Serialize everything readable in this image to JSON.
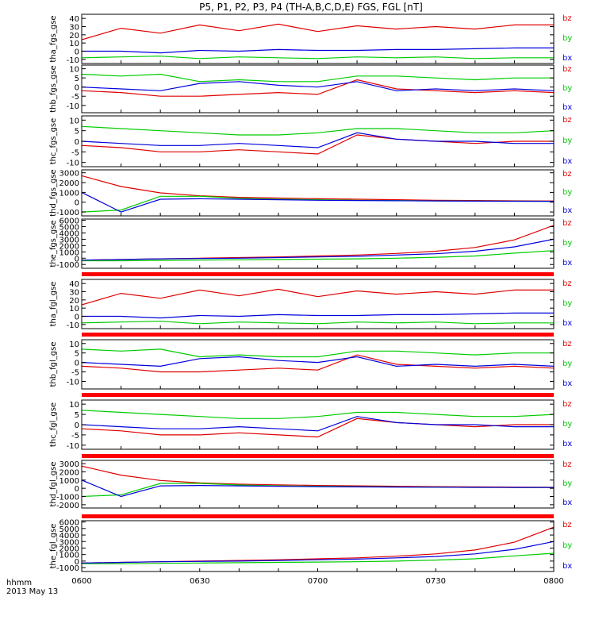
{
  "title": "P5, P1, P2, P3, P4 (TH-A,B,C,D,E) FGS, FGL [nT]",
  "footer": {
    "time_label": "hhmm",
    "date_label": "2013 May 13"
  },
  "x_ticks": [
    "0600",
    "0630",
    "0700",
    "0730",
    "0800"
  ],
  "colors": {
    "bz": "#e00000",
    "by": "#00cc00",
    "bx": "#0000dd",
    "bar": "#ff0000",
    "axis": "#000000"
  },
  "chart_data": [
    {
      "type": "line",
      "id": "tha_fgs_gse",
      "ylabel": "tha_fgs_gse",
      "yticks": [
        "40",
        "30",
        "20",
        "10",
        "0",
        "-10"
      ],
      "ylim": [
        -15,
        45
      ],
      "x": [
        "06:00",
        "06:10",
        "06:20",
        "06:30",
        "06:40",
        "06:50",
        "07:00",
        "07:10",
        "07:20",
        "07:30",
        "07:40",
        "07:50",
        "08:00"
      ],
      "series": [
        {
          "name": "bz",
          "values": [
            14,
            28,
            22,
            32,
            25,
            33,
            24,
            31,
            27,
            30,
            27,
            32,
            32
          ]
        },
        {
          "name": "by",
          "values": [
            -8,
            -7,
            -6,
            -9,
            -7,
            -8,
            -9,
            -7,
            -8,
            -7,
            -9,
            -8,
            -8
          ]
        },
        {
          "name": "bx",
          "values": [
            0,
            0,
            -2,
            1,
            0,
            2,
            1,
            1,
            2,
            2,
            3,
            4,
            4
          ]
        }
      ]
    },
    {
      "type": "line",
      "id": "thb_fgs_gse",
      "ylabel": "thb_fgs_gse",
      "yticks": [
        "10",
        "5",
        "0",
        "-5",
        "-10"
      ],
      "ylim": [
        -14,
        12
      ],
      "x": [
        "06:00",
        "06:10",
        "06:20",
        "06:30",
        "06:40",
        "06:50",
        "07:00",
        "07:10",
        "07:20",
        "07:30",
        "07:40",
        "07:50",
        "08:00"
      ],
      "series": [
        {
          "name": "bz",
          "values": [
            -2,
            -3,
            -5,
            -5,
            -4,
            -3,
            -4,
            4,
            -1,
            -2,
            -3,
            -2,
            -3
          ]
        },
        {
          "name": "by",
          "values": [
            7,
            6,
            7,
            3,
            4,
            3,
            3,
            6,
            6,
            5,
            4,
            5,
            5
          ]
        },
        {
          "name": "bx",
          "values": [
            0,
            -1,
            -2,
            2,
            3,
            1,
            0,
            3,
            -2,
            -1,
            -2,
            -1,
            -2
          ]
        }
      ]
    },
    {
      "type": "line",
      "id": "thc_fgs_gse",
      "ylabel": "thc_fgs_gse",
      "yticks": [
        "10",
        "5",
        "0",
        "-5",
        "-10"
      ],
      "ylim": [
        -12,
        12
      ],
      "x": [
        "06:00",
        "06:10",
        "06:20",
        "06:30",
        "06:40",
        "06:50",
        "07:00",
        "07:10",
        "07:20",
        "07:30",
        "07:40",
        "07:50",
        "08:00"
      ],
      "series": [
        {
          "name": "bz",
          "values": [
            -2,
            -3,
            -5,
            -5,
            -4,
            -5,
            -6,
            3,
            1,
            0,
            -1,
            0,
            0
          ]
        },
        {
          "name": "by",
          "values": [
            7,
            6,
            5,
            4,
            3,
            3,
            4,
            6,
            6,
            5,
            4,
            4,
            5
          ]
        },
        {
          "name": "bx",
          "values": [
            0,
            -1,
            -2,
            -2,
            -1,
            -2,
            -3,
            4,
            1,
            0,
            0,
            -1,
            -1
          ]
        }
      ]
    },
    {
      "type": "line",
      "id": "thd_fgs_gse",
      "ylabel": "thd_fgs_gse",
      "yticks": [
        "3000",
        "2000",
        "1000",
        "0",
        "-1000"
      ],
      "ylim": [
        -1400,
        3300
      ],
      "x": [
        "06:00",
        "06:10",
        "06:20",
        "06:30",
        "06:40",
        "06:50",
        "07:00",
        "07:10",
        "07:20",
        "07:30",
        "07:40",
        "07:50",
        "08:00"
      ],
      "series": [
        {
          "name": "bz",
          "values": [
            2700,
            1600,
            950,
            650,
            500,
            420,
            350,
            300,
            250,
            200,
            170,
            140,
            120
          ]
        },
        {
          "name": "by",
          "values": [
            -1000,
            -800,
            600,
            600,
            400,
            300,
            250,
            200,
            160,
            130,
            110,
            100,
            90
          ]
        },
        {
          "name": "bx",
          "values": [
            1000,
            -1000,
            300,
            350,
            300,
            250,
            200,
            170,
            150,
            130,
            110,
            100,
            90
          ]
        }
      ]
    },
    {
      "type": "line",
      "id": "the_fgs_gse",
      "ylabel": "the_fgs_gse",
      "yticks": [
        "6000",
        "5000",
        "4000",
        "3000",
        "2000",
        "1000",
        "0",
        "-1000"
      ],
      "ylim": [
        -1600,
        6200
      ],
      "x": [
        "06:00",
        "06:10",
        "06:20",
        "06:30",
        "06:40",
        "06:50",
        "07:00",
        "07:10",
        "07:20",
        "07:30",
        "07:40",
        "07:50",
        "08:00"
      ],
      "series": [
        {
          "name": "bz",
          "values": [
            -300,
            -200,
            -100,
            0,
            100,
            200,
            350,
            500,
            750,
            1100,
            1700,
            2900,
            5200
          ]
        },
        {
          "name": "by",
          "values": [
            -400,
            -400,
            -350,
            -300,
            -250,
            -200,
            -150,
            -100,
            0,
            150,
            350,
            800,
            1200
          ]
        },
        {
          "name": "bx",
          "values": [
            -300,
            -200,
            -100,
            -50,
            0,
            100,
            200,
            300,
            500,
            700,
            1100,
            1800,
            3000
          ]
        }
      ]
    },
    {
      "type": "line",
      "id": "tha_fgl_gse",
      "ylabel": "tha_fgl_gse",
      "yticks": [
        "40",
        "30",
        "20",
        "10",
        "0",
        "-10"
      ],
      "ylim": [
        -15,
        45
      ],
      "x": [
        "06:00",
        "06:10",
        "06:20",
        "06:30",
        "06:40",
        "06:50",
        "07:00",
        "07:10",
        "07:20",
        "07:30",
        "07:40",
        "07:50",
        "08:00"
      ],
      "series": [
        {
          "name": "bz",
          "values": [
            14,
            28,
            22,
            32,
            25,
            33,
            24,
            31,
            27,
            30,
            27,
            32,
            32
          ]
        },
        {
          "name": "by",
          "values": [
            -8,
            -7,
            -6,
            -9,
            -7,
            -8,
            -9,
            -7,
            -8,
            -7,
            -9,
            -8,
            -8
          ]
        },
        {
          "name": "bx",
          "values": [
            0,
            0,
            -2,
            1,
            0,
            2,
            1,
            1,
            2,
            2,
            3,
            4,
            4
          ]
        }
      ]
    },
    {
      "type": "line",
      "id": "thb_fgl_gse",
      "ylabel": "thb_fgl_gse",
      "yticks": [
        "10",
        "5",
        "0",
        "-5",
        "-10"
      ],
      "ylim": [
        -14,
        12
      ],
      "x": [
        "06:00",
        "06:10",
        "06:20",
        "06:30",
        "06:40",
        "06:50",
        "07:00",
        "07:10",
        "07:20",
        "07:30",
        "07:40",
        "07:50",
        "08:00"
      ],
      "series": [
        {
          "name": "bz",
          "values": [
            -2,
            -3,
            -5,
            -5,
            -4,
            -3,
            -4,
            4,
            -1,
            -2,
            -3,
            -2,
            -3
          ]
        },
        {
          "name": "by",
          "values": [
            7,
            6,
            7,
            3,
            4,
            3,
            3,
            6,
            6,
            5,
            4,
            5,
            5
          ]
        },
        {
          "name": "bx",
          "values": [
            0,
            -1,
            -2,
            2,
            3,
            1,
            0,
            3,
            -2,
            -1,
            -2,
            -1,
            -2
          ]
        }
      ]
    },
    {
      "type": "line",
      "id": "thc_fgl_gse",
      "ylabel": "thc_fgl_gse",
      "yticks": [
        "10",
        "5",
        "0",
        "-5",
        "-10"
      ],
      "ylim": [
        -12,
        12
      ],
      "x": [
        "06:00",
        "06:10",
        "06:20",
        "06:30",
        "06:40",
        "06:50",
        "07:00",
        "07:10",
        "07:20",
        "07:30",
        "07:40",
        "07:50",
        "08:00"
      ],
      "series": [
        {
          "name": "bz",
          "values": [
            -2,
            -3,
            -5,
            -5,
            -4,
            -5,
            -6,
            3,
            1,
            0,
            -1,
            0,
            0
          ]
        },
        {
          "name": "by",
          "values": [
            7,
            6,
            5,
            4,
            3,
            3,
            4,
            6,
            6,
            5,
            4,
            4,
            5
          ]
        },
        {
          "name": "bx",
          "values": [
            0,
            -1,
            -2,
            -2,
            -1,
            -2,
            -3,
            4,
            1,
            0,
            0,
            -1,
            -1
          ]
        }
      ]
    },
    {
      "type": "line",
      "id": "thd_fgl_gse",
      "ylabel": "thd_fgl_gse",
      "yticks": [
        "3000",
        "2000",
        "1000",
        "0",
        "-1000",
        "-2000"
      ],
      "ylim": [
        -2400,
        3400
      ],
      "x": [
        "06:00",
        "06:10",
        "06:20",
        "06:30",
        "06:40",
        "06:50",
        "07:00",
        "07:10",
        "07:20",
        "07:30",
        "07:40",
        "07:50",
        "08:00"
      ],
      "series": [
        {
          "name": "bz",
          "values": [
            2700,
            1600,
            950,
            650,
            500,
            420,
            350,
            300,
            250,
            200,
            170,
            140,
            120
          ]
        },
        {
          "name": "by",
          "values": [
            -1000,
            -800,
            600,
            600,
            400,
            300,
            250,
            200,
            160,
            130,
            110,
            100,
            90
          ]
        },
        {
          "name": "bx",
          "values": [
            1000,
            -1000,
            300,
            350,
            300,
            250,
            200,
            170,
            150,
            130,
            110,
            100,
            90
          ]
        }
      ]
    },
    {
      "type": "line",
      "id": "the_fgl_gse",
      "ylabel": "the_fgl_gse",
      "yticks": [
        "6000",
        "5000",
        "4000",
        "3000",
        "2000",
        "1000",
        "0",
        "-1000"
      ],
      "ylim": [
        -1600,
        6200
      ],
      "x": [
        "06:00",
        "06:10",
        "06:20",
        "06:30",
        "06:40",
        "06:50",
        "07:00",
        "07:10",
        "07:20",
        "07:30",
        "07:40",
        "07:50",
        "08:00"
      ],
      "series": [
        {
          "name": "bz",
          "values": [
            -300,
            -200,
            -100,
            0,
            100,
            200,
            350,
            500,
            750,
            1100,
            1700,
            2900,
            5200
          ]
        },
        {
          "name": "by",
          "values": [
            -400,
            -400,
            -350,
            -300,
            -250,
            -200,
            -150,
            -100,
            0,
            150,
            350,
            800,
            1200
          ]
        },
        {
          "name": "bx",
          "values": [
            -300,
            -200,
            -100,
            -50,
            0,
            100,
            200,
            300,
            500,
            700,
            1100,
            1800,
            3000
          ]
        }
      ]
    }
  ]
}
